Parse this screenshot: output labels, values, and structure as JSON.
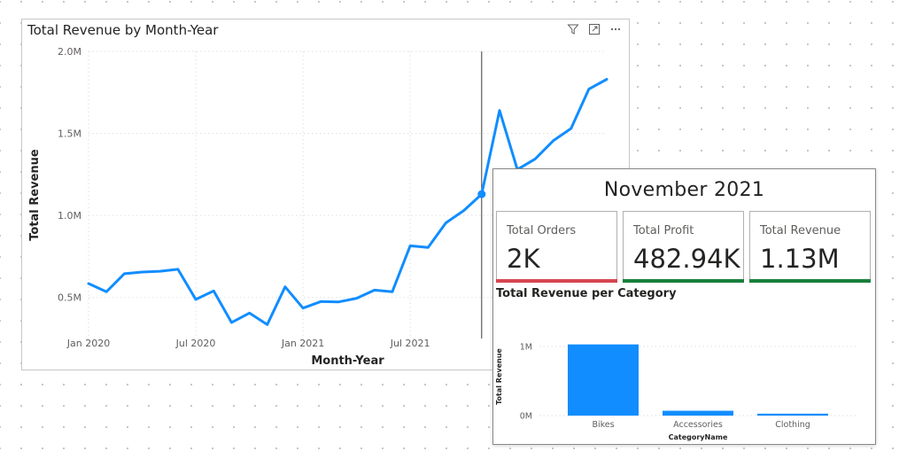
{
  "line_visual": {
    "title": "Total Revenue by Month-Year",
    "icons": [
      "filter-icon",
      "focus-mode-icon",
      "more-options-icon"
    ]
  },
  "tooltip": {
    "title": "November 2021",
    "kpis": [
      {
        "label": "Total Orders",
        "value": "2K",
        "accent": "#d64550"
      },
      {
        "label": "Total Profit",
        "value": "482.94K",
        "accent": "#1a7f3c"
      },
      {
        "label": "Total Revenue",
        "value": "1.13M",
        "accent": "#1a7f3c"
      }
    ],
    "subchart_title": "Total Revenue per Category"
  },
  "colors": {
    "line": "#118dff",
    "bar": "#118dff",
    "gridline": "#e1dfdd"
  },
  "chart_data": [
    {
      "type": "line",
      "title": "Total Revenue by Month-Year",
      "xlabel": "Month-Year",
      "ylabel": "Total Revenue",
      "x": [
        "Jan 2020",
        "Feb 2020",
        "Mar 2020",
        "Apr 2020",
        "May 2020",
        "Jun 2020",
        "Jul 2020",
        "Aug 2020",
        "Sep 2020",
        "Oct 2020",
        "Nov 2020",
        "Dec 2020",
        "Jan 2021",
        "Feb 2021",
        "Mar 2021",
        "Apr 2021",
        "May 2021",
        "Jun 2021",
        "Jul 2021",
        "Aug 2021",
        "Sep 2021",
        "Oct 2021",
        "Nov 2021",
        "Dec 2021",
        "Jan 2022",
        "Feb 2022",
        "Mar 2022",
        "Apr 2022",
        "May 2022",
        "Jun 2022"
      ],
      "x_tick_labels": [
        "Jan 2020",
        "Jul 2020",
        "Jan 2021",
        "Jul 2021"
      ],
      "x_tick_index": [
        0,
        6,
        12,
        18
      ],
      "values": [
        0.585,
        0.535,
        0.645,
        0.655,
        0.66,
        0.672,
        0.488,
        0.54,
        0.348,
        0.405,
        0.335,
        0.565,
        0.435,
        0.475,
        0.473,
        0.495,
        0.545,
        0.535,
        0.815,
        0.805,
        0.955,
        1.03,
        1.13,
        1.64,
        1.28,
        1.345,
        1.455,
        1.53,
        1.77,
        1.83
      ],
      "unit": "M",
      "ylim": [
        0.25,
        2.0
      ],
      "y_ticks": [
        0.5,
        1.0,
        1.5,
        2.0
      ],
      "y_tick_labels": [
        "0.5M",
        "1.0M",
        "1.5M",
        "2.0M"
      ],
      "highlight_index": 22,
      "grid": true
    },
    {
      "type": "bar",
      "title": "Total Revenue per Category",
      "xlabel": "CategoryName",
      "ylabel": "Total Revenue",
      "categories": [
        "Bikes",
        "Accessories",
        "Clothing"
      ],
      "values": [
        1.03,
        0.07,
        0.028
      ],
      "unit": "M",
      "ylim": [
        0,
        1.0
      ],
      "y_ticks": [
        0,
        1
      ],
      "y_tick_labels": [
        "0M",
        "1M"
      ],
      "grid": true
    }
  ]
}
